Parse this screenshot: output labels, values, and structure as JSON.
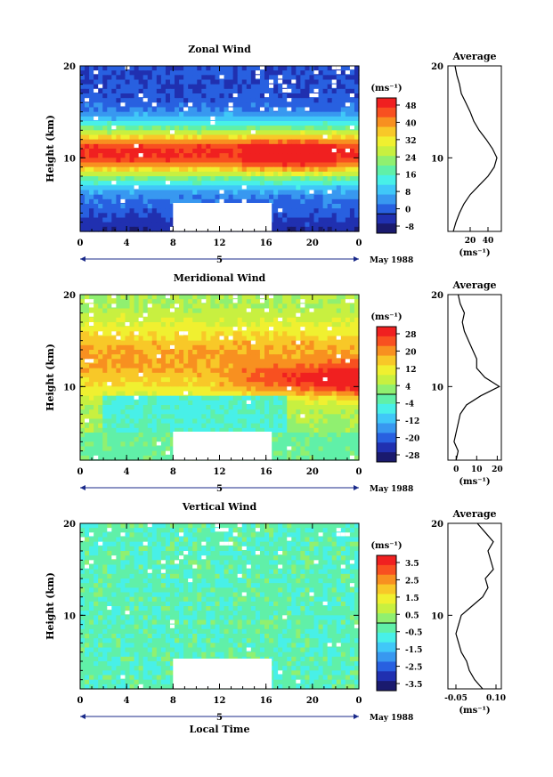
{
  "xlabel": "Local Time",
  "date_label": "May 1988",
  "date_marker": "5",
  "x_ticks": [
    "0",
    "4",
    "8",
    "12",
    "16",
    "20",
    "0"
  ],
  "y_ticks": [
    "20",
    "10"
  ],
  "ylabel": "Height (km)",
  "unit": "(ms⁻¹)",
  "colors": {
    "scale": [
      "#1a1a6e",
      "#2030b0",
      "#2860e0",
      "#3898f0",
      "#40c8f8",
      "#48f0e8",
      "#60f0a8",
      "#90f070",
      "#c8f040",
      "#f0f030",
      "#f8c828",
      "#f89020",
      "#f85020",
      "#f02020"
    ]
  },
  "chart_data": [
    {
      "type": "heatmap",
      "title": "Zonal Wind",
      "xlim": [
        0,
        24
      ],
      "ylim": [
        2,
        20
      ],
      "colorbar_ticks": [
        "48",
        "40",
        "32",
        "24",
        "16",
        "8",
        "0",
        "-8"
      ],
      "colorbar_range": [
        -8,
        48
      ],
      "profile": {
        "title": "Average",
        "x_ticks": [
          "20",
          "40"
        ],
        "xlim": [
          -5,
          55
        ],
        "xlabel": "(ms⁻¹)",
        "heights": [
          2,
          3,
          4,
          5,
          6,
          7,
          8,
          9,
          10,
          11,
          12,
          13,
          14,
          15,
          16,
          17,
          18,
          19,
          20
        ],
        "values": [
          1,
          4,
          8,
          13,
          20,
          30,
          40,
          47,
          50,
          45,
          38,
          30,
          24,
          20,
          15,
          10,
          8,
          5,
          3
        ]
      }
    },
    {
      "type": "heatmap",
      "title": "Meridional Wind",
      "xlim": [
        0,
        24
      ],
      "ylim": [
        2,
        20
      ],
      "colorbar_ticks": [
        "28",
        "20",
        "12",
        "4",
        "-4",
        "-12",
        "-20",
        "-28"
      ],
      "colorbar_range": [
        -28,
        28
      ],
      "profile": {
        "title": "Average",
        "x_ticks": [
          "0",
          "10",
          "20"
        ],
        "xlim": [
          -4,
          22
        ],
        "xlabel": "(ms⁻¹)",
        "heights": [
          2,
          3,
          4,
          5,
          6,
          7,
          8,
          9,
          10,
          11,
          12,
          13,
          14,
          15,
          16,
          17,
          18,
          19,
          20
        ],
        "values": [
          0,
          1,
          -1,
          0,
          1,
          2,
          5,
          12,
          21,
          14,
          10,
          10,
          8,
          6,
          4,
          3,
          4,
          2,
          1
        ]
      }
    },
    {
      "type": "heatmap",
      "title": "Vertical Wind",
      "xlim": [
        0,
        24
      ],
      "ylim": [
        2,
        20
      ],
      "colorbar_ticks": [
        "3.5",
        "2.5",
        "1.5",
        "0.5",
        "-0.5",
        "-1.5",
        "-2.5",
        "-3.5"
      ],
      "colorbar_range": [
        -3.5,
        3.5
      ],
      "profile": {
        "title": "Average",
        "x_ticks": [
          "-0.05",
          "0.10"
        ],
        "xlim": [
          -0.08,
          0.12
        ],
        "xlabel": "(ms⁻¹)",
        "heights": [
          2,
          3,
          4,
          5,
          6,
          7,
          8,
          9,
          10,
          11,
          12,
          13,
          14,
          15,
          16,
          17,
          18,
          19,
          20
        ],
        "values": [
          0.05,
          0.02,
          0.0,
          -0.01,
          -0.03,
          -0.04,
          -0.05,
          -0.04,
          -0.03,
          0.01,
          0.05,
          0.07,
          0.06,
          0.09,
          0.08,
          0.07,
          0.09,
          0.06,
          0.03
        ]
      }
    }
  ]
}
